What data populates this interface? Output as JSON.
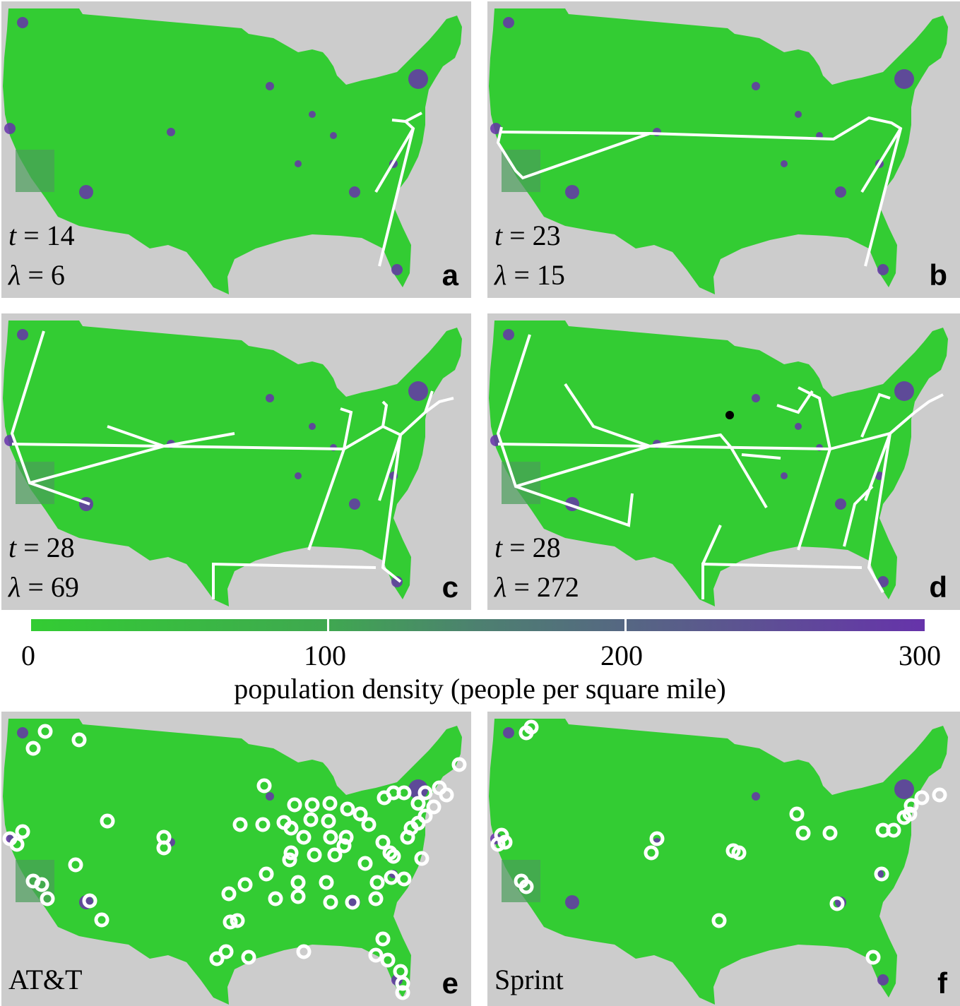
{
  "colors": {
    "background": "#cccccc",
    "low_density": "#33cc33",
    "high_density": "#6633aa",
    "network": "#ffffff"
  },
  "panels": [
    {
      "letter": "a",
      "t_prefix": "t",
      "t_value": "= 14",
      "lambda_prefix": "λ",
      "lambda_value": "= 6"
    },
    {
      "letter": "b",
      "t_prefix": "t",
      "t_value": "= 23",
      "lambda_prefix": "λ",
      "lambda_value": "= 15"
    },
    {
      "letter": "c",
      "t_prefix": "t",
      "t_value": "= 28",
      "lambda_prefix": "λ",
      "lambda_value": "= 69"
    },
    {
      "letter": "d",
      "t_prefix": "t",
      "t_value": "= 28",
      "lambda_prefix": "λ",
      "lambda_value": "= 272"
    },
    {
      "letter": "e",
      "carrier": "AT&T"
    },
    {
      "letter": "f",
      "carrier": "Sprint"
    }
  ],
  "colorbar": {
    "ticks": [
      "0",
      "100",
      "200",
      "300"
    ],
    "range": [
      0,
      300
    ],
    "title": "population density (people per square mile)"
  }
}
